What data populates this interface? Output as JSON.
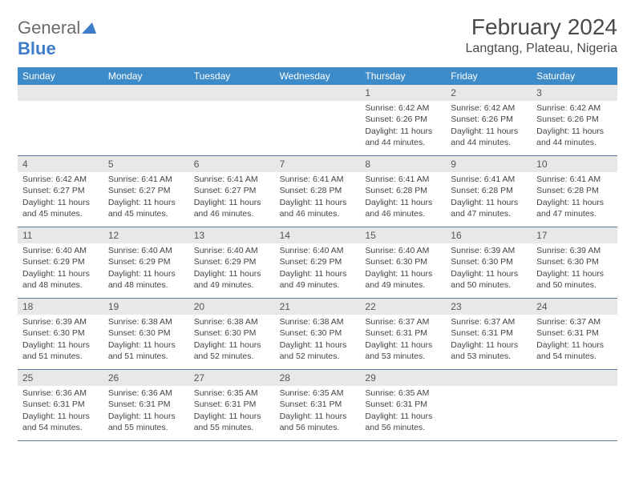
{
  "logo": {
    "text_gray": "General",
    "text_blue": "Blue"
  },
  "header": {
    "month_title": "February 2024",
    "location": "Langtang, Plateau, Nigeria"
  },
  "colors": {
    "header_bar": "#3d8bc9",
    "day_number_bg": "#e8e8e8",
    "week_border": "#5a7a9a",
    "logo_gray": "#6b6b6b",
    "logo_blue": "#3d7cc9"
  },
  "weekdays": [
    "Sunday",
    "Monday",
    "Tuesday",
    "Wednesday",
    "Thursday",
    "Friday",
    "Saturday"
  ],
  "weeks": [
    [
      null,
      null,
      null,
      null,
      {
        "n": "1",
        "sr": "Sunrise: 6:42 AM",
        "ss": "Sunset: 6:26 PM",
        "dl": "Daylight: 11 hours and 44 minutes."
      },
      {
        "n": "2",
        "sr": "Sunrise: 6:42 AM",
        "ss": "Sunset: 6:26 PM",
        "dl": "Daylight: 11 hours and 44 minutes."
      },
      {
        "n": "3",
        "sr": "Sunrise: 6:42 AM",
        "ss": "Sunset: 6:26 PM",
        "dl": "Daylight: 11 hours and 44 minutes."
      }
    ],
    [
      {
        "n": "4",
        "sr": "Sunrise: 6:42 AM",
        "ss": "Sunset: 6:27 PM",
        "dl": "Daylight: 11 hours and 45 minutes."
      },
      {
        "n": "5",
        "sr": "Sunrise: 6:41 AM",
        "ss": "Sunset: 6:27 PM",
        "dl": "Daylight: 11 hours and 45 minutes."
      },
      {
        "n": "6",
        "sr": "Sunrise: 6:41 AM",
        "ss": "Sunset: 6:27 PM",
        "dl": "Daylight: 11 hours and 46 minutes."
      },
      {
        "n": "7",
        "sr": "Sunrise: 6:41 AM",
        "ss": "Sunset: 6:28 PM",
        "dl": "Daylight: 11 hours and 46 minutes."
      },
      {
        "n": "8",
        "sr": "Sunrise: 6:41 AM",
        "ss": "Sunset: 6:28 PM",
        "dl": "Daylight: 11 hours and 46 minutes."
      },
      {
        "n": "9",
        "sr": "Sunrise: 6:41 AM",
        "ss": "Sunset: 6:28 PM",
        "dl": "Daylight: 11 hours and 47 minutes."
      },
      {
        "n": "10",
        "sr": "Sunrise: 6:41 AM",
        "ss": "Sunset: 6:28 PM",
        "dl": "Daylight: 11 hours and 47 minutes."
      }
    ],
    [
      {
        "n": "11",
        "sr": "Sunrise: 6:40 AM",
        "ss": "Sunset: 6:29 PM",
        "dl": "Daylight: 11 hours and 48 minutes."
      },
      {
        "n": "12",
        "sr": "Sunrise: 6:40 AM",
        "ss": "Sunset: 6:29 PM",
        "dl": "Daylight: 11 hours and 48 minutes."
      },
      {
        "n": "13",
        "sr": "Sunrise: 6:40 AM",
        "ss": "Sunset: 6:29 PM",
        "dl": "Daylight: 11 hours and 49 minutes."
      },
      {
        "n": "14",
        "sr": "Sunrise: 6:40 AM",
        "ss": "Sunset: 6:29 PM",
        "dl": "Daylight: 11 hours and 49 minutes."
      },
      {
        "n": "15",
        "sr": "Sunrise: 6:40 AM",
        "ss": "Sunset: 6:30 PM",
        "dl": "Daylight: 11 hours and 49 minutes."
      },
      {
        "n": "16",
        "sr": "Sunrise: 6:39 AM",
        "ss": "Sunset: 6:30 PM",
        "dl": "Daylight: 11 hours and 50 minutes."
      },
      {
        "n": "17",
        "sr": "Sunrise: 6:39 AM",
        "ss": "Sunset: 6:30 PM",
        "dl": "Daylight: 11 hours and 50 minutes."
      }
    ],
    [
      {
        "n": "18",
        "sr": "Sunrise: 6:39 AM",
        "ss": "Sunset: 6:30 PM",
        "dl": "Daylight: 11 hours and 51 minutes."
      },
      {
        "n": "19",
        "sr": "Sunrise: 6:38 AM",
        "ss": "Sunset: 6:30 PM",
        "dl": "Daylight: 11 hours and 51 minutes."
      },
      {
        "n": "20",
        "sr": "Sunrise: 6:38 AM",
        "ss": "Sunset: 6:30 PM",
        "dl": "Daylight: 11 hours and 52 minutes."
      },
      {
        "n": "21",
        "sr": "Sunrise: 6:38 AM",
        "ss": "Sunset: 6:30 PM",
        "dl": "Daylight: 11 hours and 52 minutes."
      },
      {
        "n": "22",
        "sr": "Sunrise: 6:37 AM",
        "ss": "Sunset: 6:31 PM",
        "dl": "Daylight: 11 hours and 53 minutes."
      },
      {
        "n": "23",
        "sr": "Sunrise: 6:37 AM",
        "ss": "Sunset: 6:31 PM",
        "dl": "Daylight: 11 hours and 53 minutes."
      },
      {
        "n": "24",
        "sr": "Sunrise: 6:37 AM",
        "ss": "Sunset: 6:31 PM",
        "dl": "Daylight: 11 hours and 54 minutes."
      }
    ],
    [
      {
        "n": "25",
        "sr": "Sunrise: 6:36 AM",
        "ss": "Sunset: 6:31 PM",
        "dl": "Daylight: 11 hours and 54 minutes."
      },
      {
        "n": "26",
        "sr": "Sunrise: 6:36 AM",
        "ss": "Sunset: 6:31 PM",
        "dl": "Daylight: 11 hours and 55 minutes."
      },
      {
        "n": "27",
        "sr": "Sunrise: 6:35 AM",
        "ss": "Sunset: 6:31 PM",
        "dl": "Daylight: 11 hours and 55 minutes."
      },
      {
        "n": "28",
        "sr": "Sunrise: 6:35 AM",
        "ss": "Sunset: 6:31 PM",
        "dl": "Daylight: 11 hours and 56 minutes."
      },
      {
        "n": "29",
        "sr": "Sunrise: 6:35 AM",
        "ss": "Sunset: 6:31 PM",
        "dl": "Daylight: 11 hours and 56 minutes."
      },
      null,
      null
    ]
  ]
}
